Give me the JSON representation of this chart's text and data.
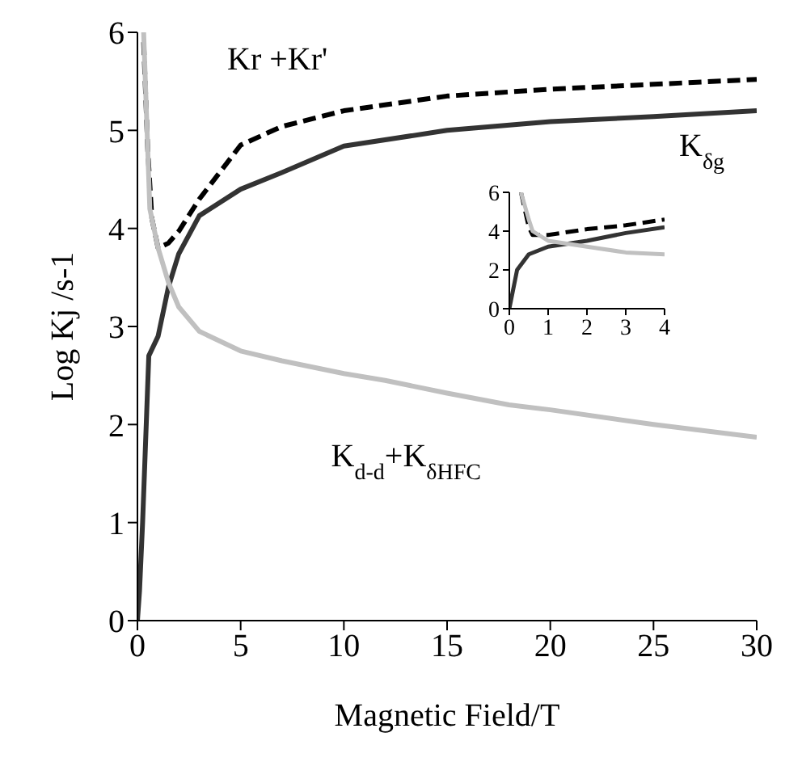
{
  "chart_data": [
    {
      "type": "line",
      "xlabel": "Magnetic Field/T",
      "ylabel": "Log Kj   /s-1",
      "xlim": [
        0,
        30
      ],
      "xticks": [
        0,
        5,
        10,
        15,
        20,
        25,
        30
      ],
      "ylim": [
        0,
        6
      ],
      "yticks": [
        0,
        1,
        2,
        3,
        4,
        5,
        6
      ],
      "grid": false,
      "legend": false,
      "marker": "none",
      "series": [
        {
          "name": "Kr +Kr'",
          "color": "#000000",
          "line_style": "dashed",
          "x": [
            0.3,
            0.5,
            0.7,
            1,
            1.5,
            2,
            3,
            5,
            7,
            10,
            15,
            20,
            25,
            30
          ],
          "values": [
            5.9,
            4.8,
            4.1,
            3.8,
            3.85,
            3.97,
            4.3,
            4.85,
            5.04,
            5.2,
            5.35,
            5.42,
            5.47,
            5.52
          ]
        },
        {
          "name": "K$_{δg}$",
          "color": "#333333",
          "line_style": "solid",
          "x": [
            0,
            0.1,
            0.25,
            0.55,
            1,
            1.5,
            2,
            3,
            5,
            7,
            10,
            15,
            20,
            25,
            30
          ],
          "values": [
            0,
            0.3,
            1.0,
            2.7,
            2.9,
            3.4,
            3.74,
            4.13,
            4.4,
            4.57,
            4.84,
            5.0,
            5.09,
            5.14,
            5.2
          ]
        },
        {
          "name": "K$_{d-d}$+K$_{δHFC}$",
          "color": "#c0c0c0",
          "line_style": "solid",
          "x": [
            0.3,
            0.45,
            0.6,
            1,
            1.5,
            2,
            3,
            5,
            7,
            10,
            12,
            15,
            18,
            20,
            25,
            30
          ],
          "values": [
            6,
            5.1,
            4.2,
            3.8,
            3.45,
            3.2,
            2.95,
            2.75,
            2.65,
            2.52,
            2.45,
            2.32,
            2.2,
            2.15,
            2.0,
            1.87
          ]
        }
      ]
    },
    {
      "type": "line",
      "xlim": [
        0,
        4
      ],
      "xticks": [
        0,
        1,
        2,
        3,
        4
      ],
      "ylim": [
        0,
        6
      ],
      "yticks": [
        0,
        2,
        4,
        6
      ],
      "grid": false,
      "legend": false,
      "marker": "none",
      "series": [
        {
          "color": "#000000",
          "line_style": "dashed",
          "x": [
            0.3,
            0.5,
            0.6,
            1,
            2,
            3,
            4
          ],
          "values": [
            6,
            4.2,
            3.8,
            3.8,
            4.1,
            4.3,
            4.6
          ]
        },
        {
          "color": "#333333",
          "line_style": "solid",
          "x": [
            0,
            0.2,
            0.5,
            1,
            2,
            3,
            4
          ],
          "values": [
            0,
            2,
            2.8,
            3.2,
            3.5,
            3.9,
            4.2
          ]
        },
        {
          "color": "#c0c0c0",
          "line_style": "solid",
          "x": [
            0.3,
            0.5,
            0.6,
            1,
            2,
            3,
            4
          ],
          "values": [
            6,
            4.6,
            4,
            3.5,
            3.2,
            2.9,
            2.8
          ]
        }
      ]
    }
  ]
}
